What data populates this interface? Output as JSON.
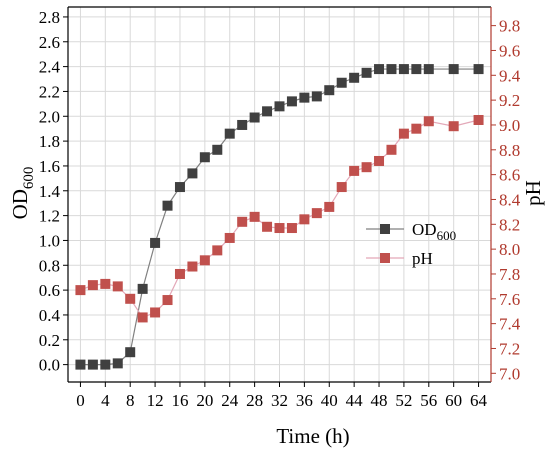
{
  "chart_data": {
    "type": "line",
    "xlabel": "Time (h)",
    "ylabel_left": {
      "main": "OD",
      "sub": "600"
    },
    "ylabel_right": "pH",
    "xlim": [
      -2,
      66
    ],
    "ylim_left": [
      -0.14,
      2.88
    ],
    "ylim_right": [
      6.93,
      9.95
    ],
    "x_ticks": [
      0,
      4,
      8,
      12,
      16,
      20,
      24,
      28,
      32,
      36,
      40,
      44,
      48,
      52,
      56,
      60,
      64
    ],
    "x_tick_labels": [
      "0",
      "4",
      "8",
      "12",
      "16",
      "20",
      "24",
      "28",
      "32",
      "36",
      "40",
      "44",
      "48",
      "52",
      "56",
      "60",
      "64"
    ],
    "y_ticks_left": [
      0.0,
      0.2,
      0.4,
      0.6,
      0.8,
      1.0,
      1.2,
      1.4,
      1.6,
      1.8,
      2.0,
      2.2,
      2.4,
      2.6,
      2.8
    ],
    "y_tick_labels_left": [
      "0.0",
      "0.2",
      "0.4",
      "0.6",
      "0.8",
      "1.0",
      "1.2",
      "1.4",
      "1.6",
      "1.8",
      "2.0",
      "2.2",
      "2.4",
      "2.6",
      "2.8"
    ],
    "y_ticks_right": [
      7.0,
      7.2,
      7.4,
      7.6,
      7.8,
      8.0,
      8.2,
      8.4,
      8.6,
      8.8,
      9.0,
      9.2,
      9.4,
      9.6,
      9.8
    ],
    "y_tick_labels_right": [
      "7.0",
      "7.2",
      "7.4",
      "7.6",
      "7.8",
      "8.0",
      "8.2",
      "8.4",
      "8.6",
      "8.8",
      "9.0",
      "9.2",
      "9.4",
      "9.6",
      "9.8"
    ],
    "grid": true,
    "legend_position": "center-right",
    "series": [
      {
        "name": "OD",
        "name_sub": "600",
        "axis": "left",
        "color": "#404040",
        "line_color": "#808080",
        "x": [
          0,
          2,
          4,
          6,
          8,
          10,
          12,
          14,
          16,
          18,
          20,
          22,
          24,
          26,
          28,
          30,
          32,
          34,
          36,
          38,
          40,
          42,
          44,
          46,
          48,
          50,
          52,
          54,
          56,
          60,
          64
        ],
        "y": [
          0.0,
          0.0,
          0.0,
          0.01,
          0.1,
          0.61,
          0.98,
          1.28,
          1.43,
          1.54,
          1.67,
          1.73,
          1.86,
          1.93,
          1.99,
          2.04,
          2.08,
          2.12,
          2.15,
          2.16,
          2.21,
          2.27,
          2.31,
          2.35,
          2.38,
          2.38,
          2.38,
          2.38,
          2.38,
          2.38,
          2.38
        ]
      },
      {
        "name": "pH",
        "axis": "right",
        "color": "#c0504d",
        "line_color": "#e3a8b8",
        "x": [
          0,
          2,
          4,
          6,
          8,
          10,
          12,
          14,
          16,
          18,
          20,
          22,
          24,
          26,
          28,
          30,
          32,
          34,
          36,
          38,
          40,
          42,
          44,
          46,
          48,
          50,
          52,
          54,
          56,
          60,
          64
        ],
        "y": [
          7.67,
          7.71,
          7.72,
          7.7,
          7.6,
          7.45,
          7.49,
          7.59,
          7.8,
          7.86,
          7.91,
          7.99,
          8.09,
          8.22,
          8.26,
          8.18,
          8.17,
          8.17,
          8.24,
          8.29,
          8.34,
          8.5,
          8.63,
          8.66,
          8.71,
          8.8,
          8.93,
          8.97,
          9.03,
          8.99,
          9.04
        ]
      }
    ]
  },
  "colors": {
    "right_axis": "#b03a2e",
    "grid": "#d9d9d9",
    "frame": "#000000"
  }
}
